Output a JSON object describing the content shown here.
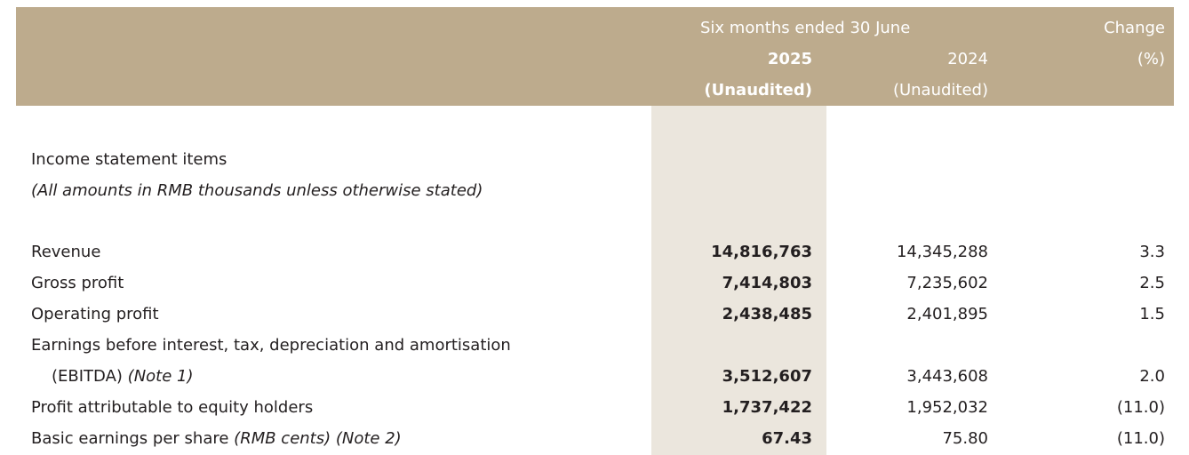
{
  "header": {
    "period": "Six months ended 30 June",
    "change": "Change",
    "change_unit": "(%)",
    "year_current": "2025",
    "year_prior": "2024",
    "audit_current": "(Unaudited)",
    "audit_prior": "(Unaudited)"
  },
  "section": {
    "title": "Income statement items",
    "note": "(All amounts in RMB thousands unless otherwise stated)"
  },
  "rows": [
    {
      "label": "Revenue",
      "suffix": "",
      "current": "14,816,763",
      "prior": "14,345,288",
      "change": "3.3"
    },
    {
      "label": "Gross profit",
      "suffix": "",
      "current": "7,414,803",
      "prior": "7,235,602",
      "change": "2.5"
    },
    {
      "label": "Operating profit",
      "suffix": "",
      "current": "2,438,485",
      "prior": "2,401,895",
      "change": "1.5"
    },
    {
      "label": "Earnings before interest, tax, depreciation and amortisation",
      "label2": "(EBITDA)",
      "suffix": "(Note 1)",
      "current": "3,512,607",
      "prior": "3,443,608",
      "change": "2.0"
    },
    {
      "label": "Profit attributable to equity holders",
      "suffix": "",
      "current": "1,737,422",
      "prior": "1,952,032",
      "change": "(11.0)"
    },
    {
      "label": "Basic earnings per share",
      "suffix": "(RMB cents) (Note 2)",
      "current": "67.43",
      "prior": "75.80",
      "change": "(11.0)"
    }
  ],
  "colors": {
    "header_bg": "#bdab8d",
    "highlight_column": "#ebe6dd",
    "text": "#231f20"
  }
}
